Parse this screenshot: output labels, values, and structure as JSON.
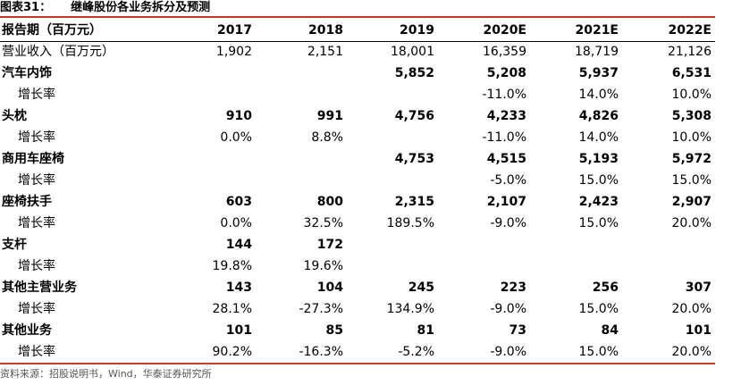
{
  "title": {
    "figure_label": "图表31：",
    "text": "继峰股份各业务拆分及预测"
  },
  "header": {
    "label": "报告期（百万元）",
    "years": [
      "2017",
      "2018",
      "2019",
      "2020E",
      "2021E",
      "2022E"
    ]
  },
  "rows": [
    {
      "label": "营业收入（百万元）",
      "style": "revenue",
      "values": [
        "1,902",
        "2,151",
        "18,001",
        "16,359",
        "18,719",
        "21,126"
      ]
    },
    {
      "label": "汽车内饰",
      "style": "bold",
      "values": [
        "",
        "",
        "5,852",
        "5,208",
        "5,937",
        "6,531"
      ]
    },
    {
      "label": "增长率",
      "style": "sub",
      "values": [
        "",
        "",
        "",
        "-11.0%",
        "14.0%",
        "10.0%"
      ]
    },
    {
      "label": "头枕",
      "style": "bold",
      "values": [
        "910",
        "991",
        "4,756",
        "4,233",
        "4,826",
        "5,308"
      ]
    },
    {
      "label": "增长率",
      "style": "sub",
      "values": [
        "0.0%",
        "8.8%",
        "",
        "-11.0%",
        "14.0%",
        "10.0%"
      ]
    },
    {
      "label": "商用车座椅",
      "style": "bold",
      "values": [
        "",
        "",
        "4,753",
        "4,515",
        "5,193",
        "5,972"
      ]
    },
    {
      "label": "增长率",
      "style": "sub",
      "values": [
        "",
        "",
        "",
        "-5.0%",
        "15.0%",
        "15.0%"
      ]
    },
    {
      "label": "座椅扶手",
      "style": "bold",
      "values": [
        "603",
        "800",
        "2,315",
        "2,107",
        "2,423",
        "2,907"
      ]
    },
    {
      "label": "增长率",
      "style": "sub",
      "values": [
        "0.0%",
        "32.5%",
        "189.5%",
        "-9.0%",
        "15.0%",
        "20.0%"
      ]
    },
    {
      "label": "支杆",
      "style": "bold",
      "values": [
        "144",
        "172",
        "",
        "",
        "",
        ""
      ]
    },
    {
      "label": "增长率",
      "style": "sub",
      "values": [
        "19.8%",
        "19.6%",
        "",
        "",
        "",
        ""
      ]
    },
    {
      "label": "其他主营业务",
      "style": "bold",
      "values": [
        "143",
        "104",
        "245",
        "223",
        "256",
        "307"
      ]
    },
    {
      "label": "增长率",
      "style": "sub",
      "values": [
        "28.1%",
        "-27.3%",
        "134.9%",
        "-9.0%",
        "15.0%",
        "20.0%"
      ]
    },
    {
      "label": "其他业务",
      "style": "bold",
      "values": [
        "101",
        "85",
        "81",
        "73",
        "84",
        "101"
      ]
    },
    {
      "label": "增长率",
      "style": "sub",
      "values": [
        "90.2%",
        "-16.3%",
        "-5.2%",
        "-9.0%",
        "15.0%",
        "20.0%"
      ]
    }
  ],
  "source": "资料来源：招股说明书，Wind，华泰证券研究所",
  "colors": {
    "rule_accent": "#c0392b",
    "text": "#000000",
    "source_text": "#555555"
  }
}
